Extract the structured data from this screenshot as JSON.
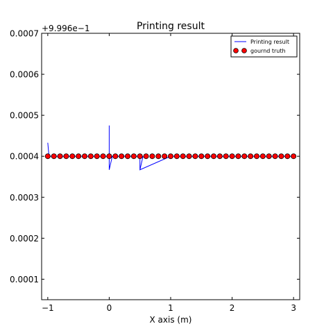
{
  "chart_data": {
    "type": "line",
    "title": "Printing result",
    "xlabel": "X axis (m)",
    "ylabel": "",
    "offset_label": "+9.996e−1",
    "xlim": [
      -1.1,
      3.1
    ],
    "ylim": [
      5e-05,
      0.0007
    ],
    "xticks": [
      -1,
      0,
      1,
      2,
      3
    ],
    "xtick_labels": [
      "−1",
      "0",
      "1",
      "2",
      "3"
    ],
    "yticks": [
      0.0001,
      0.0002,
      0.0003,
      0.0004,
      0.0005,
      0.0006,
      0.0007
    ],
    "ytick_labels": [
      "0.0001",
      "0.0002",
      "0.0003",
      "0.0004",
      "0.0005",
      "0.0006",
      "0.0007"
    ],
    "grid": false,
    "legend_position": "top-right",
    "series": [
      {
        "name": "Printing result",
        "style": "line",
        "color": "#0000ff",
        "x": [
          -1.0,
          -0.98,
          0.0,
          0.0,
          0.0,
          0.05,
          0.5,
          0.5,
          0.55,
          0.5,
          1.0,
          3.0
        ],
        "y": [
          0.000433,
          0.0004,
          0.0004,
          0.000475,
          0.000367,
          0.0004,
          0.0004,
          0.000367,
          0.0004,
          0.000367,
          0.0004,
          0.0004
        ]
      },
      {
        "name": "gournd truth",
        "style": "scatter",
        "color": "#ff0000",
        "edge_color": "#000000",
        "x": [
          -1.0,
          -0.9,
          -0.8,
          -0.7,
          -0.6,
          -0.5,
          -0.4,
          -0.3,
          -0.2,
          -0.1,
          0.0,
          0.1,
          0.2,
          0.3,
          0.4,
          0.5,
          0.6,
          0.7,
          0.8,
          0.9,
          1.0,
          1.1,
          1.2,
          1.3,
          1.4,
          1.5,
          1.6,
          1.7,
          1.8,
          1.9,
          2.0,
          2.1,
          2.2,
          2.3,
          2.4,
          2.5,
          2.6,
          2.7,
          2.8,
          2.9,
          3.0
        ],
        "y": [
          0.0004,
          0.0004,
          0.0004,
          0.0004,
          0.0004,
          0.0004,
          0.0004,
          0.0004,
          0.0004,
          0.0004,
          0.0004,
          0.0004,
          0.0004,
          0.0004,
          0.0004,
          0.0004,
          0.0004,
          0.0004,
          0.0004,
          0.0004,
          0.0004,
          0.0004,
          0.0004,
          0.0004,
          0.0004,
          0.0004,
          0.0004,
          0.0004,
          0.0004,
          0.0004,
          0.0004,
          0.0004,
          0.0004,
          0.0004,
          0.0004,
          0.0004,
          0.0004,
          0.0004,
          0.0004,
          0.0004,
          0.0004
        ]
      }
    ]
  }
}
